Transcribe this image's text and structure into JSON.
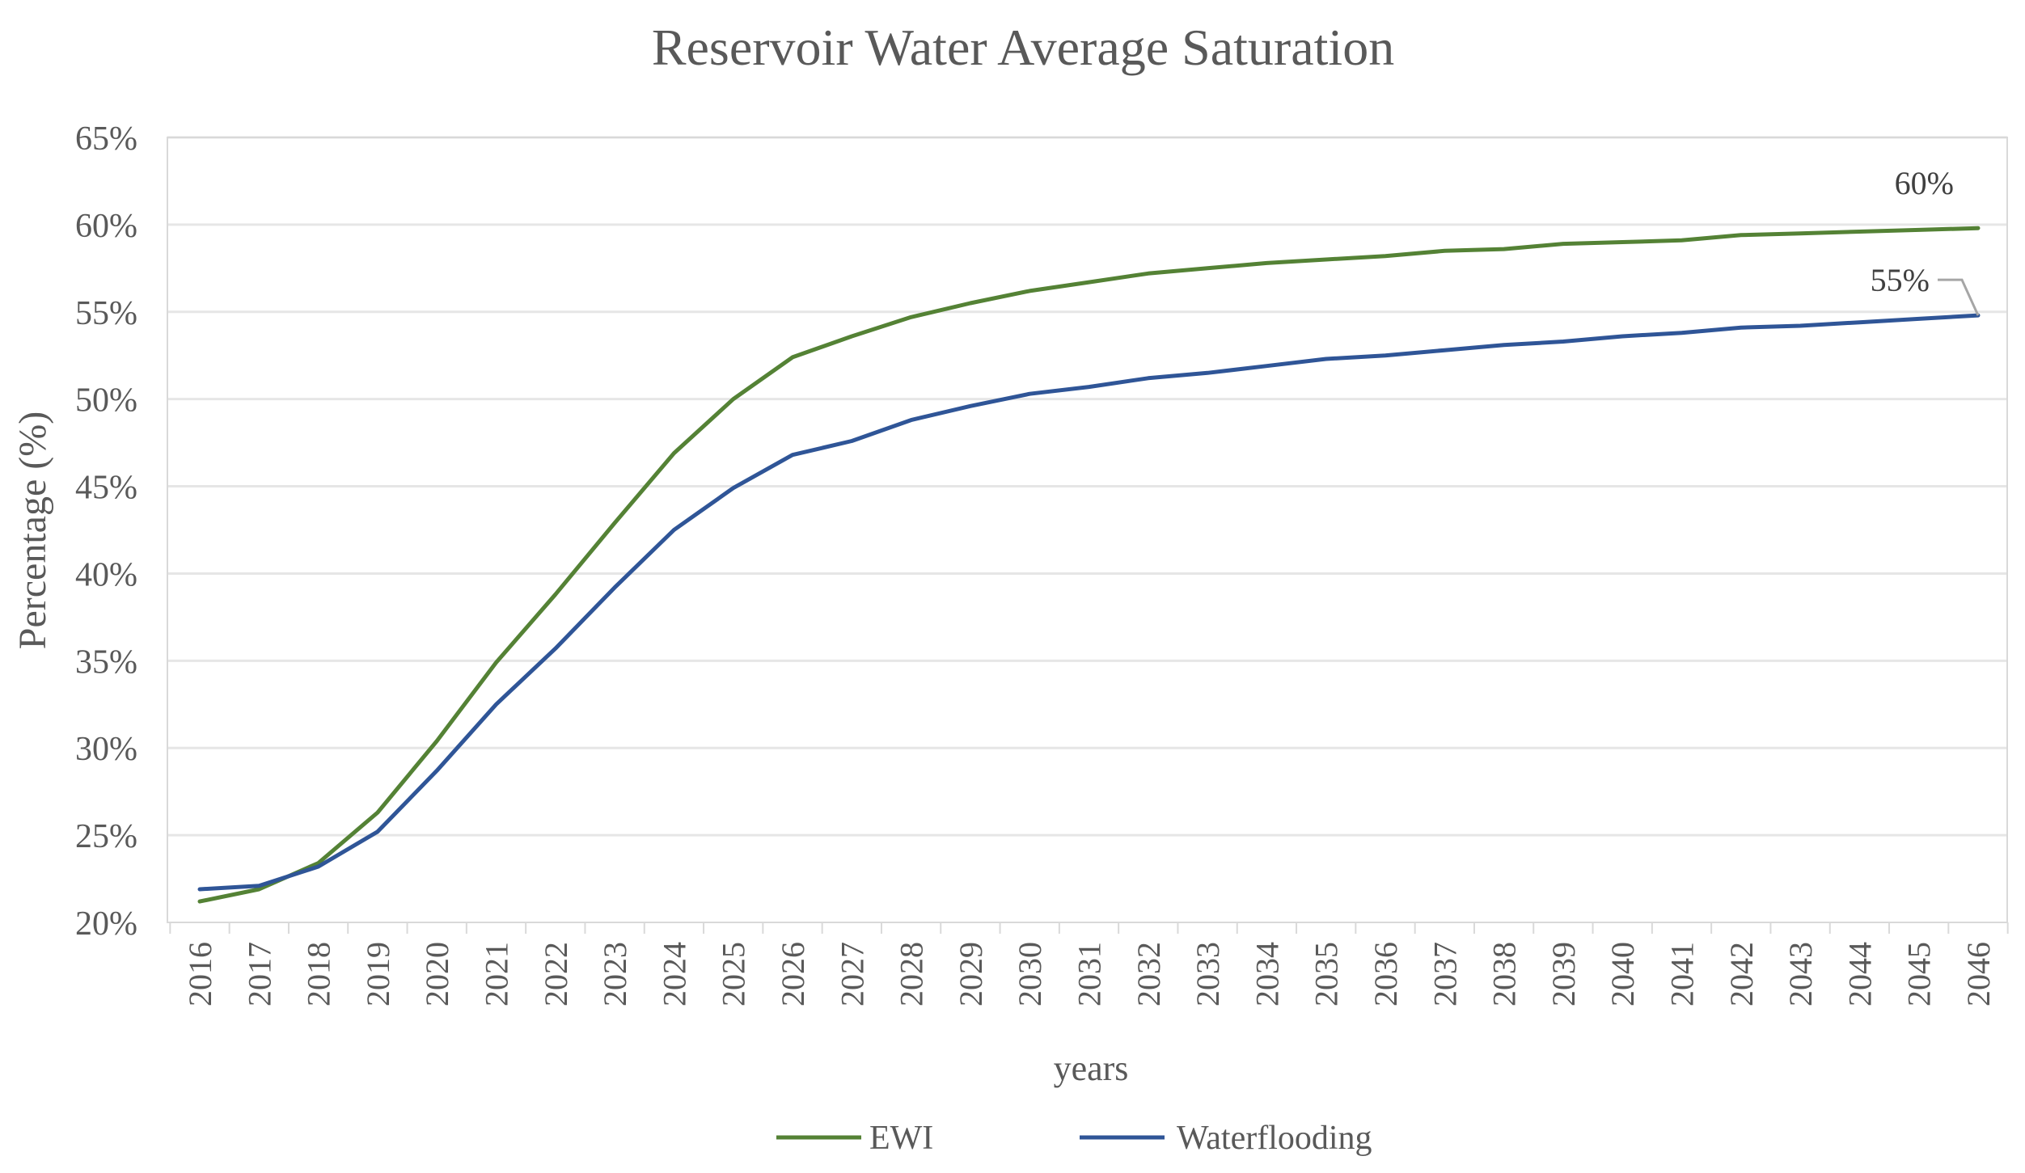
{
  "chart_data": {
    "type": "line",
    "title": "Reservoir Water Average Saturation",
    "xlabel": "years",
    "ylabel": "Percentage (%)",
    "ylim": [
      20,
      65
    ],
    "yticks": [
      20,
      25,
      30,
      35,
      40,
      45,
      50,
      55,
      60,
      65
    ],
    "ytick_labels": [
      "20%",
      "25%",
      "30%",
      "35%",
      "40%",
      "45%",
      "50%",
      "55%",
      "60%",
      "65%"
    ],
    "grid": true,
    "legend_position": "bottom",
    "categories": [
      "2016",
      "2017",
      "2018",
      "2019",
      "2020",
      "2021",
      "2022",
      "2023",
      "2024",
      "2025",
      "2026",
      "2027",
      "2028",
      "2029",
      "2030",
      "2031",
      "2032",
      "2033",
      "2034",
      "2035",
      "2036",
      "2037",
      "2038",
      "2039",
      "2040",
      "2041",
      "2042",
      "2043",
      "2044",
      "2045",
      "2046"
    ],
    "series": [
      {
        "name": "EWI",
        "color": "#548235",
        "values": [
          21.2,
          21.9,
          23.4,
          26.3,
          30.4,
          34.9,
          38.8,
          42.9,
          46.9,
          50.0,
          52.4,
          53.6,
          54.7,
          55.5,
          56.2,
          56.7,
          57.2,
          57.5,
          57.8,
          58.0,
          58.2,
          58.5,
          58.6,
          58.9,
          59.0,
          59.1,
          59.4,
          59.5,
          59.6,
          59.7,
          59.8
        ]
      },
      {
        "name": "Waterflooding",
        "color": "#2f5597",
        "values": [
          21.9,
          22.1,
          23.2,
          25.2,
          28.7,
          32.5,
          35.7,
          39.2,
          42.5,
          44.9,
          46.8,
          47.6,
          48.8,
          49.6,
          50.3,
          50.7,
          51.2,
          51.5,
          51.9,
          52.3,
          52.5,
          52.8,
          53.1,
          53.3,
          53.6,
          53.8,
          54.1,
          54.2,
          54.4,
          54.6,
          54.8
        ]
      }
    ],
    "annotations": [
      {
        "text": "60%",
        "series": "EWI",
        "category": "2046"
      },
      {
        "text": "55%",
        "series": "Waterflooding",
        "category": "2046"
      }
    ]
  }
}
